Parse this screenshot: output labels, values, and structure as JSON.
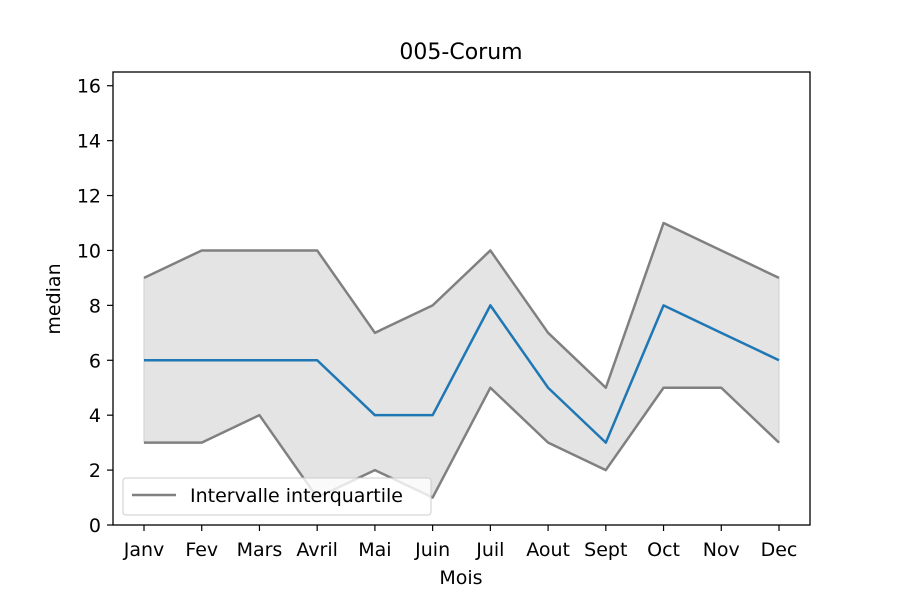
{
  "chart_data": {
    "type": "line",
    "title": "005-Corum",
    "xlabel": "Mois",
    "ylabel": "median",
    "categories": [
      "Janv",
      "Fev",
      "Mars",
      "Avril",
      "Mai",
      "Juin",
      "Juil",
      "Aout",
      "Sept",
      "Oct",
      "Nov",
      "Dec"
    ],
    "ylim": [
      0,
      16.5
    ],
    "yticks": [
      0,
      2,
      4,
      6,
      8,
      10,
      12,
      14,
      16
    ],
    "grid": false,
    "legend_position": "lower-left",
    "series": [
      {
        "key": "median",
        "values": [
          6,
          6,
          6,
          6,
          4,
          4,
          8,
          5,
          3,
          8,
          7,
          6
        ],
        "color": "#1f77b4"
      },
      {
        "key": "q3",
        "values": [
          9,
          10,
          10,
          10,
          7,
          8,
          10,
          7,
          5,
          11,
          10,
          9
        ],
        "color": "#808080"
      },
      {
        "key": "q1",
        "values": [
          3,
          3,
          4,
          1,
          2,
          1,
          5,
          3,
          2,
          5,
          5,
          3
        ],
        "color": "#808080"
      }
    ],
    "band": {
      "lower": "q1",
      "upper": "q3",
      "fill": "#e4e4e4"
    },
    "legend": [
      {
        "label": "Intervalle interquartile",
        "color": "#808080"
      }
    ]
  }
}
